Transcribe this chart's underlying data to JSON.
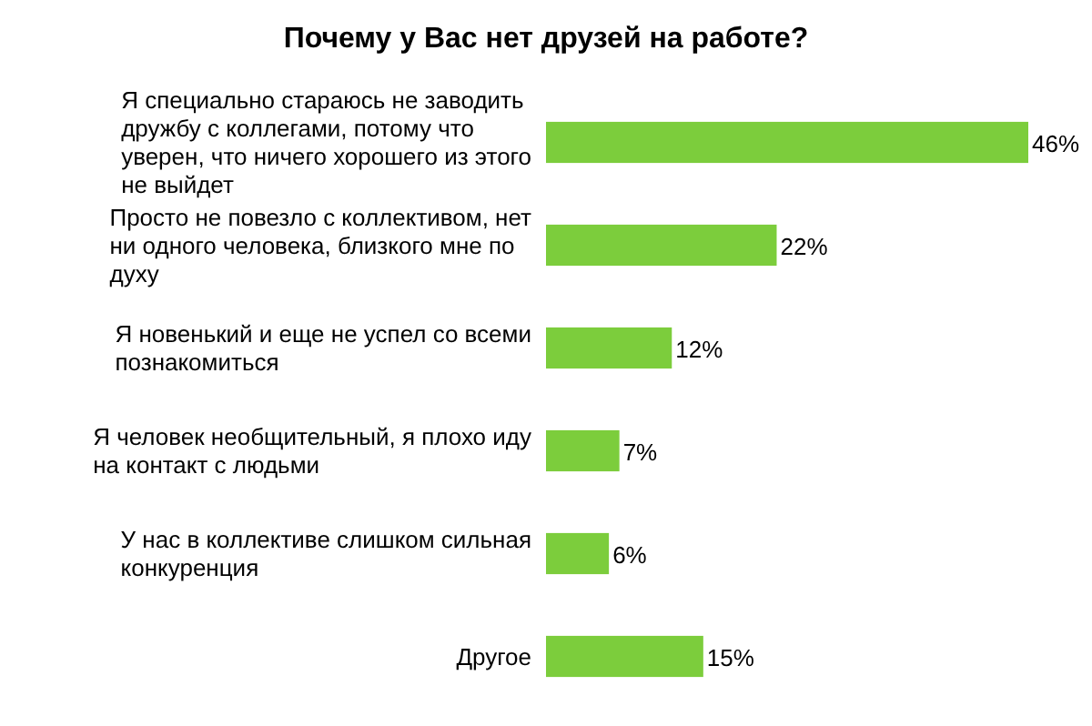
{
  "chart_data": {
    "type": "bar",
    "orientation": "horizontal",
    "title": "Почему у Вас нет друзей на работе?",
    "categories": [
      "Я специально стараюсь не заводить дружбу с коллегами, потому что уверен, что ничего хорошего из этого не выйдет",
      "Просто не повезло с коллективом, нет ни одного человека, близкого мне по духу",
      "Я новенький и еще не успел со всеми познакомиться",
      "Я человек необщительный, я плохо иду на контакт с людьми",
      "У нас в коллективе слишком сильная конкуренция",
      "Другое"
    ],
    "values": [
      46,
      22,
      12,
      7,
      6,
      15
    ],
    "value_labels": [
      "46%",
      "22%",
      "12%",
      "7%",
      "6%",
      "15%"
    ],
    "color": "#7ccd3c"
  }
}
